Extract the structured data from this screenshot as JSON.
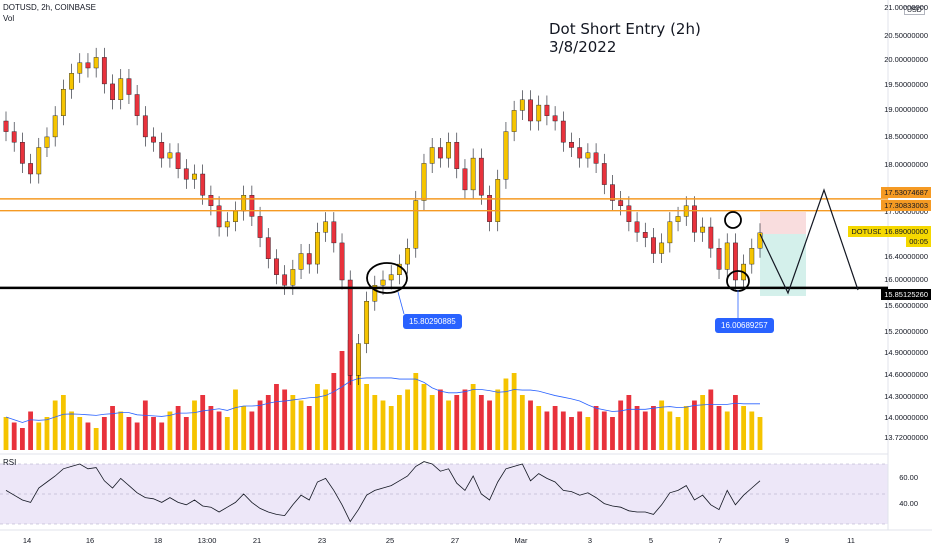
{
  "header": {
    "symbol_line": "DOTUSD, 2h, COINBASE",
    "volume_label": "Vol",
    "rsi_label": "RSI",
    "currency_badge": "USD"
  },
  "annotation": {
    "line1": "Dot Short Entry (2h)",
    "line2": "3/8/2022"
  },
  "price_labels": {
    "left_low": "15.80290885",
    "right_low": "16.00689257"
  },
  "axis_tags": {
    "resistance_high": "17.53074687",
    "resistance_low": "17.30833003",
    "current_symbol": "DOTUSD",
    "current_price": "16.89000000",
    "countdown": "00:05",
    "support": "15.85125260"
  },
  "colors": {
    "up_candle": "#f5c400",
    "down_candle": "#e8323c",
    "resistance": "#f59a23",
    "support": "#000000",
    "rsi_line": "#131722",
    "rsi_band": "#ede7f8",
    "volume_ma": "#2962ff",
    "label_bg": "#2962ff"
  },
  "chart_data": {
    "type": "candlestick",
    "title": "Dot Short Entry (2h)",
    "subtitle": "3/8/2022",
    "price_axis": {
      "ticks": [
        "21.00000000",
        "20.50000000",
        "20.00000000",
        "19.50000000",
        "19.00000000",
        "18.50000000",
        "18.00000000",
        "17.50000000",
        "17.00000000",
        "16.40000000",
        "16.00000000",
        "15.60000000",
        "15.20000000",
        "14.90000000",
        "14.60000000",
        "14.30000000",
        "14.00000000",
        "13.72000000"
      ]
    },
    "time_axis": {
      "ticks": [
        "14",
        "16",
        "18",
        "13:00",
        "21",
        "23",
        "25",
        "27",
        "Mar",
        "3",
        "5",
        "7",
        "9",
        "11"
      ]
    },
    "rsi_axis": {
      "ticks": [
        "60.00",
        "40.00"
      ]
    },
    "series": [
      {
        "name": "DOTUSD",
        "close": [
          18.8,
          18.6,
          18.2,
          18.0,
          18.5,
          18.7,
          19.1,
          19.6,
          19.9,
          20.1,
          20.0,
          20.2,
          19.7,
          19.4,
          19.8,
          19.5,
          19.1,
          18.7,
          18.6,
          18.3,
          18.4,
          18.1,
          17.9,
          18.0,
          17.6,
          17.4,
          17.0,
          17.1,
          17.3,
          17.6,
          17.2,
          16.8,
          16.4,
          16.1,
          15.9,
          16.2,
          16.5,
          16.3,
          16.9,
          17.1,
          16.7,
          16.0,
          14.2,
          14.8,
          15.6,
          15.9,
          16.0,
          16.1,
          16.3,
          16.6,
          17.5,
          18.2,
          18.5,
          18.3,
          18.6,
          18.1,
          17.7,
          18.3,
          17.6,
          17.1,
          17.9,
          18.8,
          19.2,
          19.4,
          19.0,
          19.3,
          19.1,
          19.0,
          18.6,
          18.5,
          18.3,
          18.4,
          18.2,
          17.8,
          17.5,
          17.4,
          17.1,
          16.9,
          16.8,
          16.5,
          16.7,
          17.1,
          17.2,
          17.4,
          16.9,
          17.0,
          16.6,
          16.2,
          16.7,
          16.0,
          16.3,
          16.6,
          16.89
        ]
      }
    ],
    "volume": {
      "name": "Vol",
      "values": [
        0.3,
        0.25,
        0.2,
        0.35,
        0.25,
        0.3,
        0.45,
        0.5,
        0.35,
        0.3,
        0.25,
        0.2,
        0.3,
        0.4,
        0.35,
        0.3,
        0.25,
        0.45,
        0.3,
        0.25,
        0.35,
        0.4,
        0.3,
        0.45,
        0.5,
        0.4,
        0.35,
        0.3,
        0.55,
        0.4,
        0.35,
        0.45,
        0.5,
        0.6,
        0.55,
        0.5,
        0.45,
        0.4,
        0.6,
        0.55,
        0.7,
        0.9,
        1.0,
        0.85,
        0.6,
        0.5,
        0.45,
        0.4,
        0.5,
        0.55,
        0.7,
        0.6,
        0.5,
        0.55,
        0.45,
        0.5,
        0.55,
        0.6,
        0.5,
        0.45,
        0.55,
        0.65,
        0.7,
        0.5,
        0.45,
        0.4,
        0.35,
        0.4,
        0.35,
        0.3,
        0.35,
        0.3,
        0.4,
        0.35,
        0.3,
        0.45,
        0.5,
        0.4,
        0.35,
        0.4,
        0.45,
        0.35,
        0.3,
        0.4,
        0.45,
        0.5,
        0.55,
        0.4,
        0.35,
        0.5,
        0.4,
        0.35,
        0.3
      ]
    },
    "rsi": {
      "name": "RSI",
      "values": [
        48,
        44,
        40,
        38,
        50,
        55,
        60,
        66,
        68,
        70,
        66,
        67,
        56,
        50,
        58,
        52,
        46,
        42,
        41,
        38,
        42,
        38,
        36,
        40,
        35,
        34,
        30,
        34,
        38,
        45,
        38,
        33,
        30,
        28,
        27,
        36,
        44,
        40,
        55,
        58,
        48,
        36,
        22,
        32,
        44,
        48,
        50,
        52,
        56,
        60,
        68,
        72,
        70,
        64,
        66,
        54,
        48,
        60,
        45,
        40,
        55,
        66,
        68,
        70,
        56,
        62,
        58,
        55,
        48,
        47,
        44,
        46,
        42,
        37,
        35,
        34,
        31,
        30,
        30,
        28,
        36,
        46,
        48,
        52,
        40,
        44,
        36,
        32,
        48,
        36,
        44,
        50,
        56
      ]
    },
    "levels": [
      {
        "name": "resistance",
        "value": 17.53074687
      },
      {
        "name": "resistance",
        "value": 17.30833003
      },
      {
        "name": "support",
        "value": 15.8512526
      }
    ],
    "grid": false,
    "legend": "none"
  }
}
